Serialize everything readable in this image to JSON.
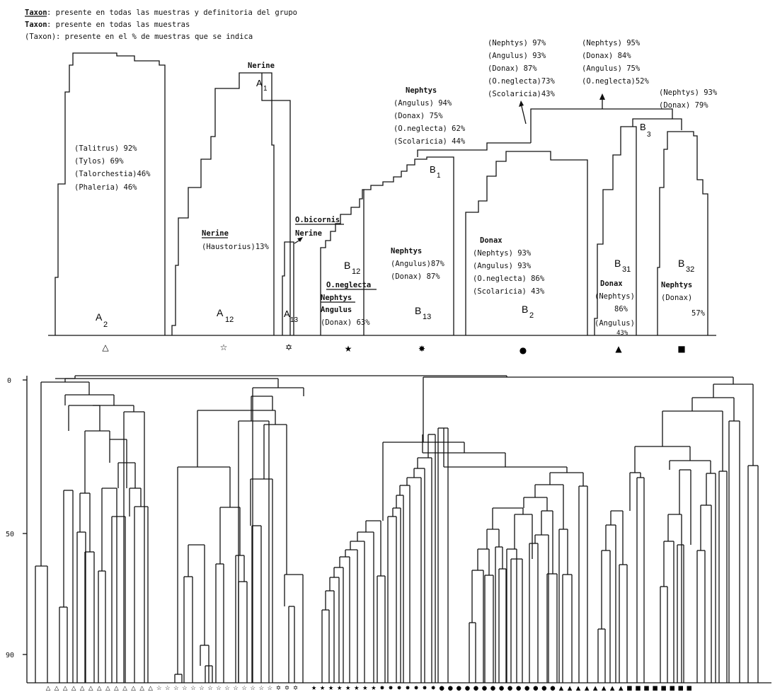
{
  "legend": [
    {
      "taxon": "Taxon",
      "desc": ": presente en todas las muestras y definitoria del grupo",
      "style": "underline-bold"
    },
    {
      "taxon": "Taxon",
      "desc": ": presente en todas las muestras",
      "style": "bold"
    },
    {
      "taxon": "(Taxon)",
      "desc": ": presente en el % de muestras que se indica",
      "style": "plain"
    }
  ],
  "groups": {
    "A2": {
      "label": "A",
      "sub": "2",
      "symbol": "△",
      "taxa": [
        "(Talitrus) 92%",
        "(Tylos) 69%",
        "(Talorchestia)46%",
        "(Phaleria) 46%"
      ]
    },
    "A12": {
      "label": "A",
      "sub": "12",
      "symbol": "☆",
      "taxa": [
        "Nerine",
        "(Haustorius)13%"
      ]
    },
    "A13": {
      "label": "A",
      "sub": "13",
      "symbol": "✡",
      "taxa": [
        "O.bicornis",
        "Nerine"
      ]
    },
    "B12": {
      "label": "B",
      "sub": "12",
      "symbol": "★",
      "taxa": [
        "O.neglecta",
        "Nephtys",
        "Angulus",
        "(Donax) 63%"
      ]
    },
    "B13": {
      "label": "B",
      "sub": "13",
      "symbol": "✸",
      "taxa": [
        "Nephtys",
        "(Angulus)87%",
        "(Donax) 87%"
      ]
    },
    "B2": {
      "label": "B",
      "sub": "2",
      "symbol": "●",
      "taxa": [
        "Donax",
        "(Nephtys) 93%",
        "(Angulus) 93%",
        "(O.neglecta) 86%",
        "(Scolaricia) 43%"
      ]
    },
    "B31": {
      "label": "B",
      "sub": "31",
      "symbol": "▲",
      "taxa": [
        "Donax",
        "(Nephtys)",
        "86%",
        "(Angulus)",
        "43%"
      ]
    },
    "B32": {
      "label": "B",
      "sub": "32",
      "symbol": "■",
      "taxa": [
        "Nephtys",
        "(Donax)",
        "57%"
      ]
    }
  },
  "nodes": {
    "A1": {
      "label": "A",
      "sub": "1",
      "taxa": [
        "Nerine"
      ]
    },
    "B1": {
      "label": "B",
      "sub": "1",
      "taxa": [
        "Nephtys",
        "(Angulus) 94%",
        "(Donax) 75%",
        "(O.neglecta) 62%",
        "(Scolaricia) 44%"
      ]
    },
    "B": {
      "taxa": [
        "(Nephtys) 97%",
        "(Angulus) 93%",
        "(Donax) 87%",
        "(O.neglecta)73%",
        "(Scolaricia)43%"
      ]
    },
    "root": {
      "taxa": [
        "(Nephtys) 95%",
        "(Donax) 84%",
        "(Angulus) 75%",
        "(O.neglecta)52%"
      ]
    },
    "B3": {
      "label": "B",
      "sub": "3",
      "taxa": [
        "(Nephtys) 93%",
        "(Donax) 79%"
      ]
    }
  },
  "dendrogram": {
    "y_ticks": [
      "0",
      "50",
      "90"
    ],
    "sample_symbols": [
      {
        "symbol": "△",
        "count": 13
      },
      {
        "symbol": "☆",
        "count": 14
      },
      {
        "symbol": "✡",
        "count": 3
      },
      {
        "symbol": "★",
        "count": 8
      },
      {
        "symbol": "✸",
        "count": 7
      },
      {
        "symbol": "●",
        "count": 14
      },
      {
        "symbol": "▲",
        "count": 8
      },
      {
        "symbol": "■",
        "count": 8
      }
    ]
  }
}
